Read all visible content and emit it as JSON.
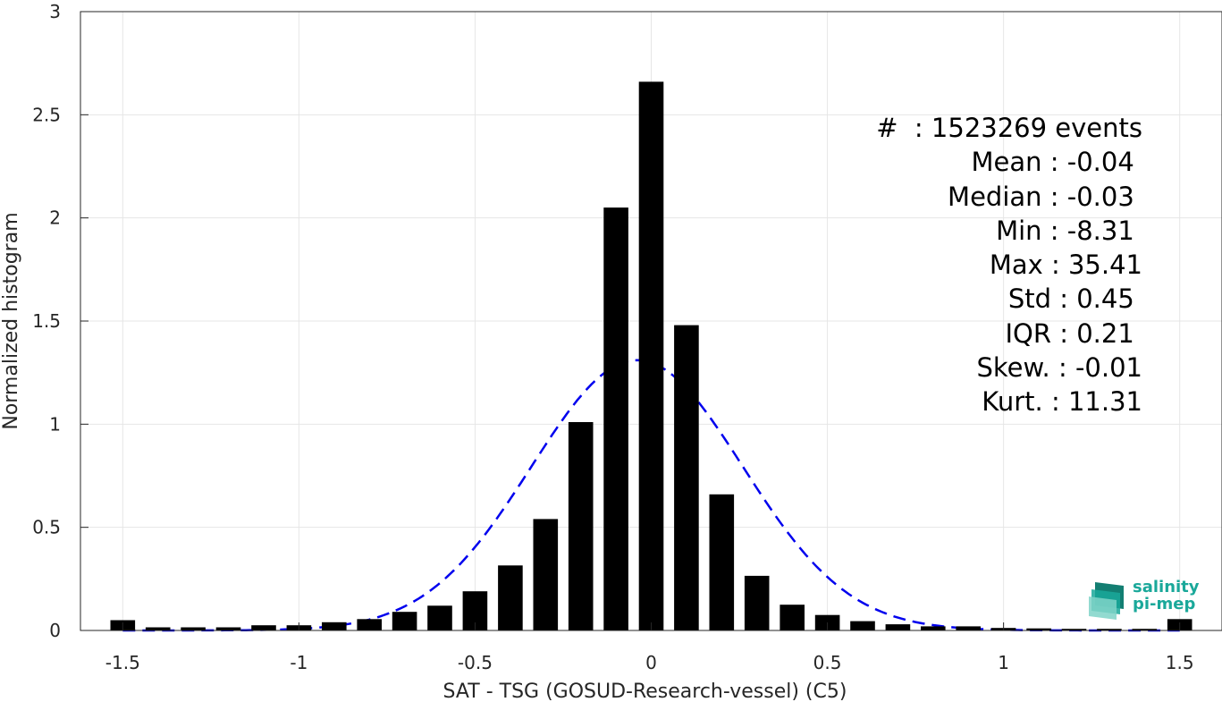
{
  "chart_data": {
    "type": "bar",
    "xlabel": "SAT - TSG (GOSUD-Research-vessel) (C5)",
    "ylabel": "Normalized histogram",
    "xlim": [
      -1.62,
      1.62
    ],
    "ylim": [
      0,
      3
    ],
    "xticks": [
      "-1.5",
      "-1",
      "-0.5",
      "0",
      "0.5",
      "1",
      "1.5"
    ],
    "xtick_values": [
      -1.5,
      -1,
      -0.5,
      0,
      0.5,
      1,
      1.5
    ],
    "yticks": [
      "0",
      "0.5",
      "1",
      "1.5",
      "2",
      "2.5",
      "3"
    ],
    "ytick_values": [
      0,
      0.5,
      1,
      1.5,
      2,
      2.5,
      3
    ],
    "grid": true,
    "bar_color": "#000000",
    "bar_width": 0.07,
    "bars": {
      "x": [
        -1.5,
        -1.4,
        -1.3,
        -1.2,
        -1.1,
        -1.0,
        -0.9,
        -0.8,
        -0.7,
        -0.6,
        -0.5,
        -0.4,
        -0.3,
        -0.2,
        -0.1,
        0.0,
        0.1,
        0.2,
        0.3,
        0.4,
        0.5,
        0.6,
        0.7,
        0.8,
        0.9,
        1.0,
        1.1,
        1.2,
        1.3,
        1.4,
        1.5
      ],
      "values": [
        0.05,
        0.015,
        0.015,
        0.015,
        0.025,
        0.025,
        0.04,
        0.055,
        0.09,
        0.12,
        0.19,
        0.315,
        0.54,
        1.01,
        2.05,
        2.66,
        1.48,
        0.66,
        0.265,
        0.125,
        0.075,
        0.045,
        0.03,
        0.02,
        0.02,
        0.012,
        0.01,
        0.008,
        0.008,
        0.008,
        0.055
      ]
    },
    "fit_curve": {
      "style": "dashed",
      "color": "#0000ee",
      "mean": -0.04,
      "std": 0.3,
      "peak": 1.31,
      "x_range": [
        -1.5,
        1.5
      ]
    },
    "annotations": [
      "#  : 1523269 events",
      "Mean : -0.04 ",
      "Median : -0.03 ",
      "Min : -8.31 ",
      "Max : 35.41",
      "Std : 0.45 ",
      "IQR : 0.21 ",
      "Skew. : -0.01",
      "Kurt. : 11.31"
    ]
  },
  "logo": {
    "line1": "salinity",
    "line2": "pi-mep"
  }
}
